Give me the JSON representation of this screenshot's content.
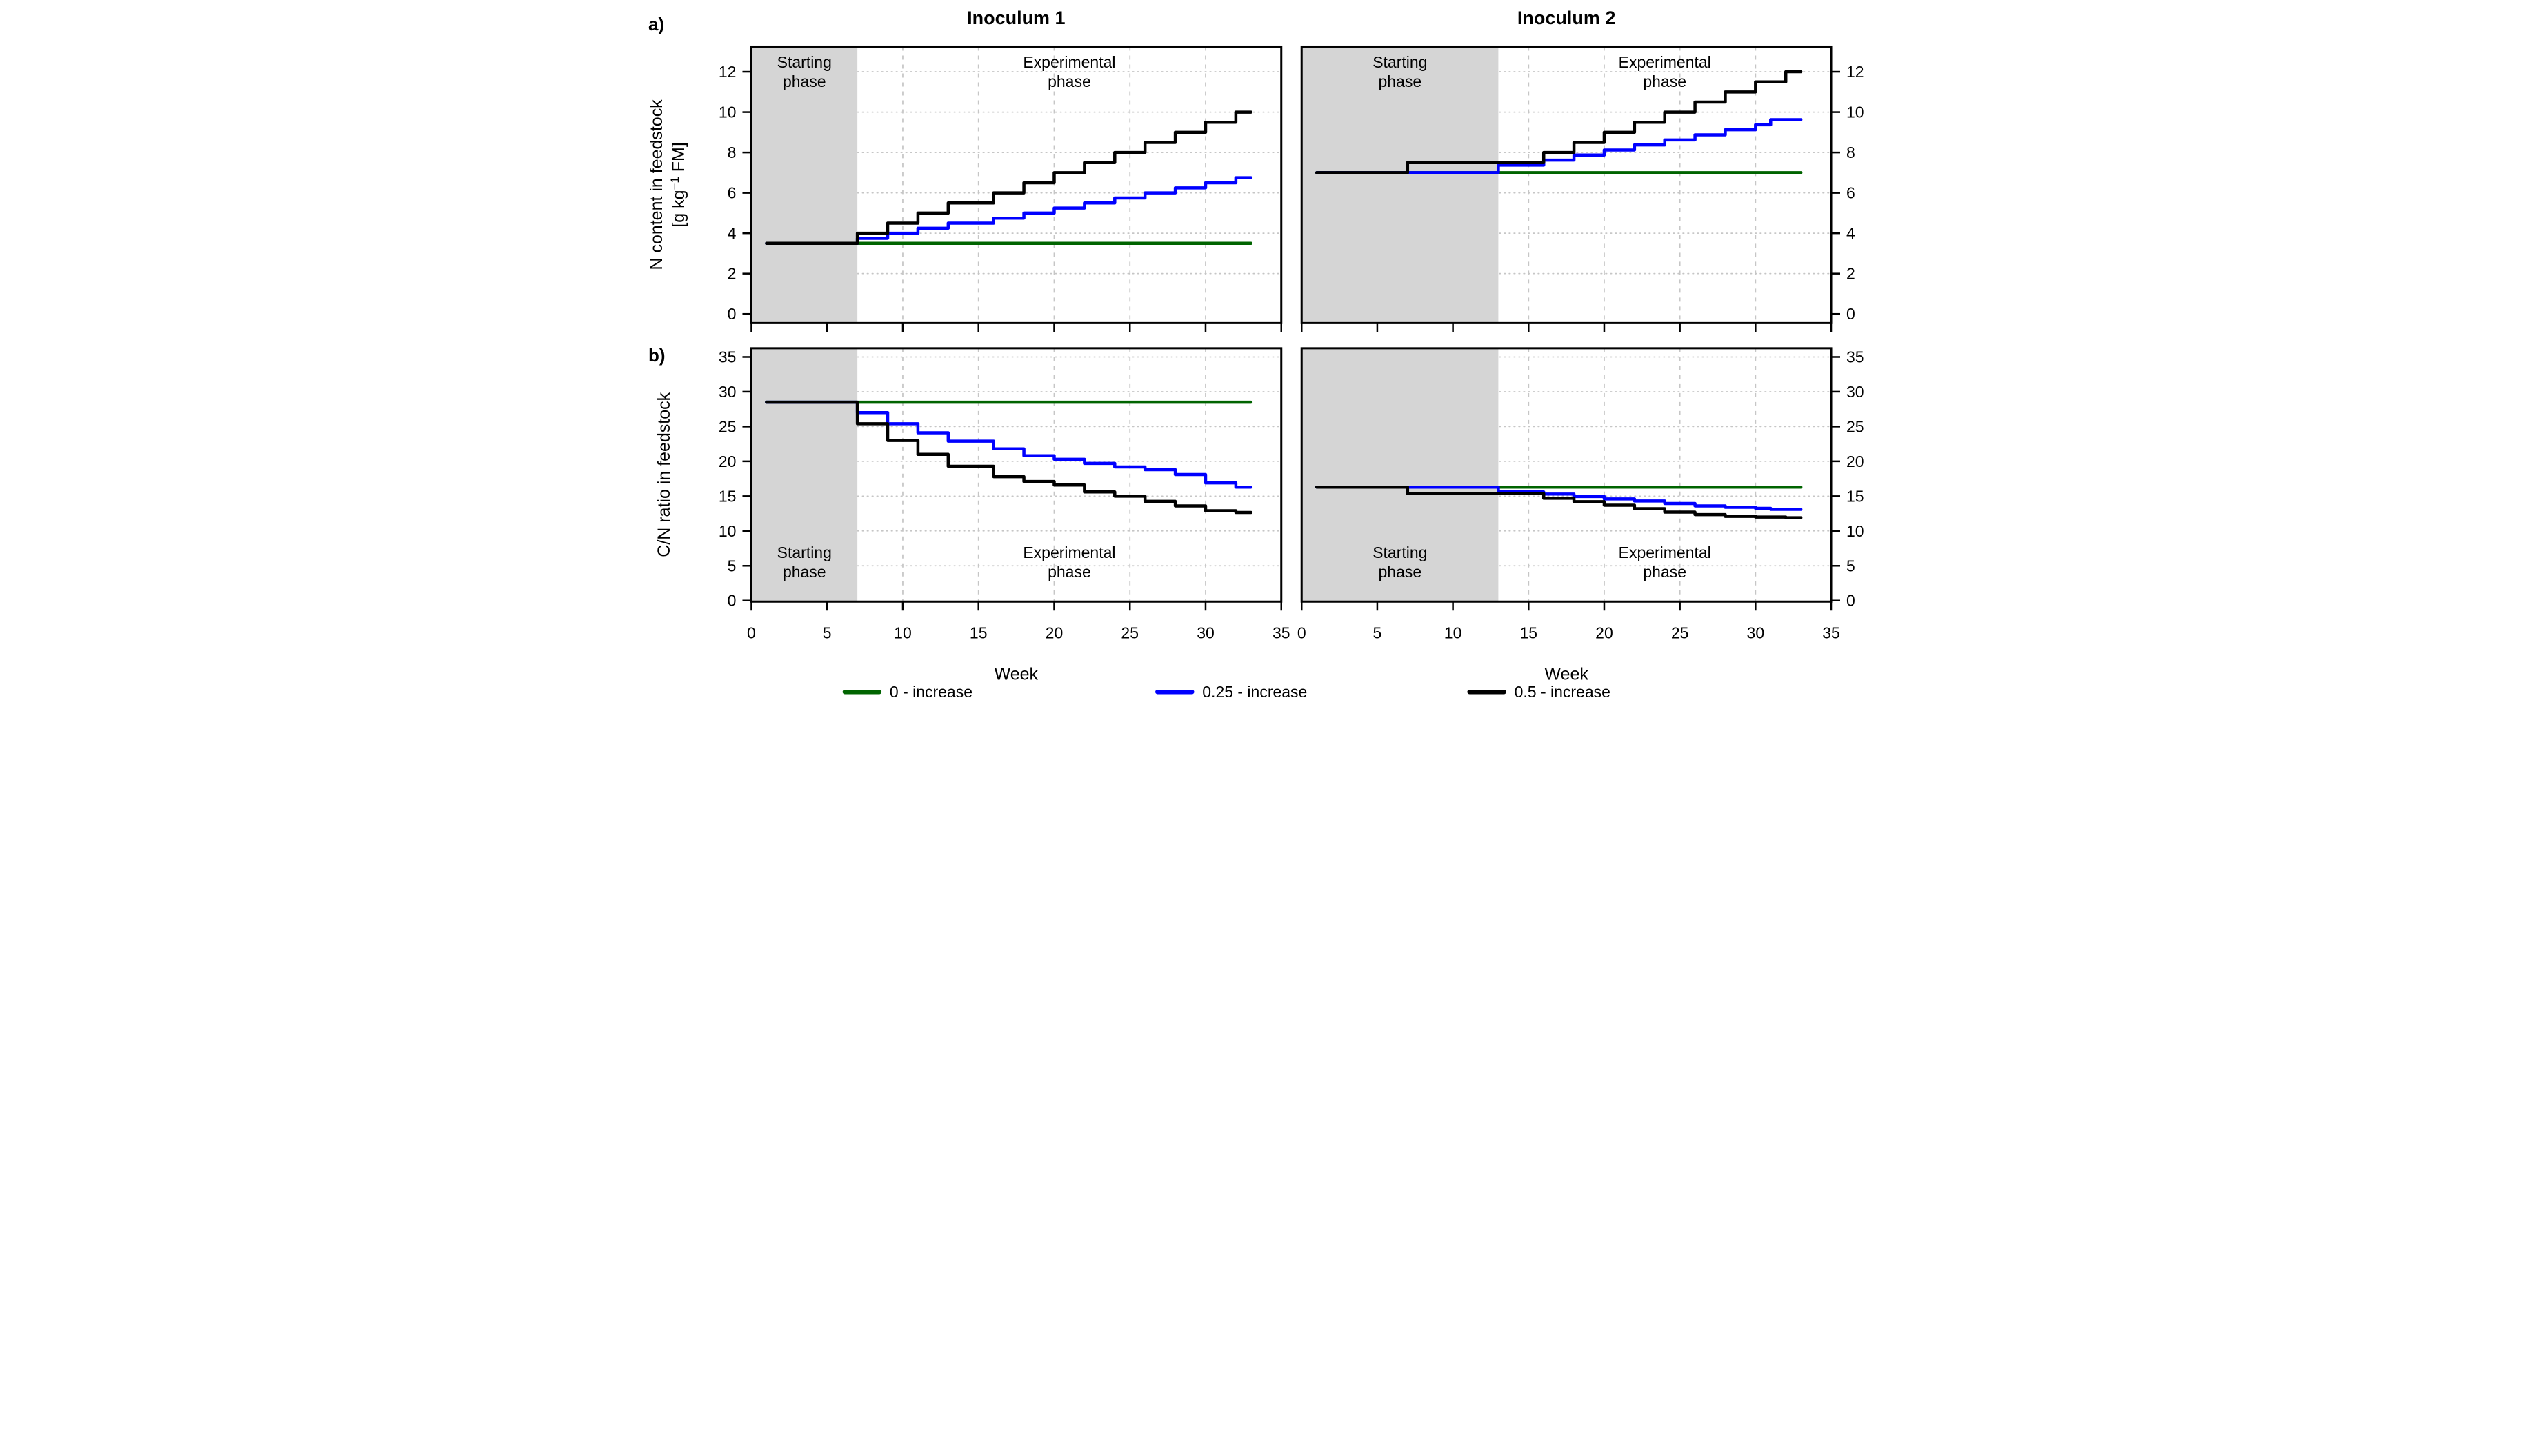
{
  "figure": {
    "corner_labels": {
      "a": "a)",
      "b": "b)"
    },
    "column_titles": [
      "Inoculum 1",
      "Inoculum 2"
    ],
    "x_label": "Week",
    "y_label_top_line1": "N content in feedstock",
    "y_label_top_unit_prefix": "[g kg",
    "y_label_top_unit_sup": "−1",
    "y_label_top_unit_suffix": " FM]",
    "y_label_bottom": "C/N ratio in feedstock",
    "phase_labels": {
      "starting": [
        "Starting",
        "phase"
      ],
      "experimental": [
        "Experimental",
        "phase"
      ]
    },
    "legend": [
      {
        "label": "0 - increase",
        "color": "#006400"
      },
      {
        "label": "0.25 - increase",
        "color": "#0000ff"
      },
      {
        "label": "0.5 - increase",
        "color": "#000000"
      }
    ],
    "colors": {
      "zero_increase": "#006400",
      "quarter_increase": "#0000ff",
      "half_increase": "#000000",
      "starting_phase_fill": "#d5d5d5",
      "gridline": "#c6c6c6",
      "frame": "#000000"
    }
  },
  "chart_data": [
    {
      "type": "line",
      "step": true,
      "panel": "N content - Inoculum 1",
      "xlim": [
        0,
        35
      ],
      "ylim": [
        -0.45,
        13.25
      ],
      "x_ticks": [
        0,
        5,
        10,
        15,
        20,
        25,
        30,
        35
      ],
      "y_ticks": [
        0,
        2,
        4,
        6,
        8,
        10,
        12
      ],
      "grid_x": [
        5,
        10,
        15,
        20,
        25,
        30
      ],
      "grid_y": [
        2,
        4,
        6,
        8,
        10,
        12
      ],
      "x_tick_labels_shown": false,
      "y_tick_side": "left",
      "starting_phase_end_week": 7,
      "series_start_week": 1,
      "series_end_week": 33,
      "series": [
        {
          "name": "0 - increase",
          "color": "#006400",
          "steps": [
            [
              1,
              3.5
            ]
          ]
        },
        {
          "name": "0.25 - increase",
          "color": "#0000ff",
          "steps": [
            [
              1,
              3.5
            ],
            [
              7,
              3.75
            ],
            [
              9,
              4.0
            ],
            [
              11,
              4.25
            ],
            [
              13,
              4.5
            ],
            [
              16,
              4.75
            ],
            [
              18,
              5.0
            ],
            [
              20,
              5.25
            ],
            [
              22,
              5.5
            ],
            [
              24,
              5.75
            ],
            [
              26,
              6.0
            ],
            [
              28,
              6.25
            ],
            [
              30,
              6.5
            ],
            [
              32,
              6.75
            ]
          ]
        },
        {
          "name": "0.5 - increase",
          "color": "#000000",
          "steps": [
            [
              1,
              3.5
            ],
            [
              7,
              4.0
            ],
            [
              9,
              4.5
            ],
            [
              11,
              5.0
            ],
            [
              13,
              5.5
            ],
            [
              16,
              6.0
            ],
            [
              18,
              6.5
            ],
            [
              20,
              7.0
            ],
            [
              22,
              7.5
            ],
            [
              24,
              8.0
            ],
            [
              26,
              8.5
            ],
            [
              28,
              9.0
            ],
            [
              30,
              9.5
            ],
            [
              32,
              10.0
            ]
          ]
        }
      ]
    },
    {
      "type": "line",
      "step": true,
      "panel": "N content - Inoculum 2",
      "xlim": [
        0,
        35
      ],
      "ylim": [
        -0.45,
        13.25
      ],
      "x_ticks": [
        0,
        5,
        10,
        15,
        20,
        25,
        30,
        35
      ],
      "y_ticks": [
        0,
        2,
        4,
        6,
        8,
        10,
        12
      ],
      "grid_x": [
        5,
        10,
        15,
        20,
        25,
        30
      ],
      "grid_y": [
        2,
        4,
        6,
        8,
        10,
        12
      ],
      "x_tick_labels_shown": false,
      "y_tick_side": "right",
      "starting_phase_end_week": 13,
      "series_start_week": 1,
      "series_end_week": 33,
      "series": [
        {
          "name": "0 - increase",
          "color": "#006400",
          "steps": [
            [
              1,
              7.0
            ]
          ]
        },
        {
          "name": "0.25 - increase",
          "color": "#0000ff",
          "steps": [
            [
              1,
              7.0
            ],
            [
              13,
              7.375
            ],
            [
              16,
              7.625
            ],
            [
              18,
              7.875
            ],
            [
              20,
              8.125
            ],
            [
              22,
              8.375
            ],
            [
              24,
              8.625
            ],
            [
              26,
              8.875
            ],
            [
              28,
              9.125
            ],
            [
              30,
              9.375
            ],
            [
              31,
              9.625
            ]
          ]
        },
        {
          "name": "0.5 - increase",
          "color": "#000000",
          "steps": [
            [
              1,
              7.0
            ],
            [
              7,
              7.5
            ],
            [
              16,
              8.0
            ],
            [
              18,
              8.5
            ],
            [
              20,
              9.0
            ],
            [
              22,
              9.5
            ],
            [
              24,
              10.0
            ],
            [
              26,
              10.5
            ],
            [
              28,
              11.0
            ],
            [
              30,
              11.5
            ],
            [
              32,
              12.0
            ]
          ]
        }
      ]
    },
    {
      "type": "line",
      "step": true,
      "panel": "C/N ratio - Inoculum 1",
      "xlim": [
        0,
        35
      ],
      "ylim": [
        -0.15,
        36.25
      ],
      "x_ticks": [
        0,
        5,
        10,
        15,
        20,
        25,
        30,
        35
      ],
      "y_ticks": [
        0,
        5,
        10,
        15,
        20,
        25,
        30,
        35
      ],
      "grid_x": [
        5,
        10,
        15,
        20,
        25,
        30
      ],
      "grid_y": [
        5,
        10,
        15,
        20,
        25,
        30,
        35
      ],
      "x_tick_labels_shown": true,
      "y_tick_side": "left",
      "starting_phase_end_week": 7,
      "series_start_week": 1,
      "series_end_week": 33,
      "series": [
        {
          "name": "0 - increase",
          "color": "#006400",
          "steps": [
            [
              1,
              28.5
            ]
          ]
        },
        {
          "name": "0.25 - increase",
          "color": "#0000ff",
          "steps": [
            [
              1,
              28.5
            ],
            [
              7,
              27.0
            ],
            [
              9,
              25.4
            ],
            [
              11,
              24.1
            ],
            [
              13,
              22.9
            ],
            [
              16,
              21.8
            ],
            [
              18,
              20.8
            ],
            [
              20,
              20.3
            ],
            [
              22,
              19.7
            ],
            [
              24,
              19.2
            ],
            [
              26,
              18.8
            ],
            [
              28,
              18.1
            ],
            [
              30,
              16.9
            ],
            [
              32,
              16.3
            ]
          ]
        },
        {
          "name": "0.5 - increase",
          "color": "#000000",
          "steps": [
            [
              1,
              28.5
            ],
            [
              7,
              25.4
            ],
            [
              9,
              23.0
            ],
            [
              11,
              21.0
            ],
            [
              13,
              19.3
            ],
            [
              16,
              17.8
            ],
            [
              18,
              17.1
            ],
            [
              20,
              16.6
            ],
            [
              22,
              15.6
            ],
            [
              24,
              15.0
            ],
            [
              26,
              14.25
            ],
            [
              28,
              13.6
            ],
            [
              30,
              12.9
            ],
            [
              32,
              12.65
            ]
          ]
        }
      ]
    },
    {
      "type": "line",
      "step": true,
      "panel": "C/N ratio - Inoculum 2",
      "xlim": [
        0,
        35
      ],
      "ylim": [
        -0.15,
        36.25
      ],
      "x_ticks": [
        0,
        5,
        10,
        15,
        20,
        25,
        30,
        35
      ],
      "y_ticks": [
        0,
        5,
        10,
        15,
        20,
        25,
        30,
        35
      ],
      "grid_x": [
        5,
        10,
        15,
        20,
        25,
        30
      ],
      "grid_y": [
        5,
        10,
        15,
        20,
        25,
        30,
        35
      ],
      "x_tick_labels_shown": true,
      "y_tick_side": "right",
      "starting_phase_end_week": 13,
      "series_start_week": 1,
      "series_end_week": 33,
      "series": [
        {
          "name": "0 - increase",
          "color": "#006400",
          "steps": [
            [
              1,
              16.3
            ]
          ]
        },
        {
          "name": "0.25 - increase",
          "color": "#0000ff",
          "steps": [
            [
              1,
              16.3
            ],
            [
              13,
              15.6
            ],
            [
              16,
              15.3
            ],
            [
              18,
              14.95
            ],
            [
              20,
              14.6
            ],
            [
              22,
              14.3
            ],
            [
              24,
              13.95
            ],
            [
              26,
              13.6
            ],
            [
              28,
              13.4
            ],
            [
              30,
              13.25
            ],
            [
              31,
              13.1
            ]
          ]
        },
        {
          "name": "0.5 - increase",
          "color": "#000000",
          "steps": [
            [
              1,
              16.3
            ],
            [
              7,
              15.35
            ],
            [
              16,
              14.7
            ],
            [
              18,
              14.2
            ],
            [
              20,
              13.7
            ],
            [
              22,
              13.2
            ],
            [
              24,
              12.7
            ],
            [
              26,
              12.35
            ],
            [
              28,
              12.1
            ],
            [
              30,
              12.0
            ],
            [
              32,
              11.9
            ]
          ]
        }
      ]
    }
  ]
}
